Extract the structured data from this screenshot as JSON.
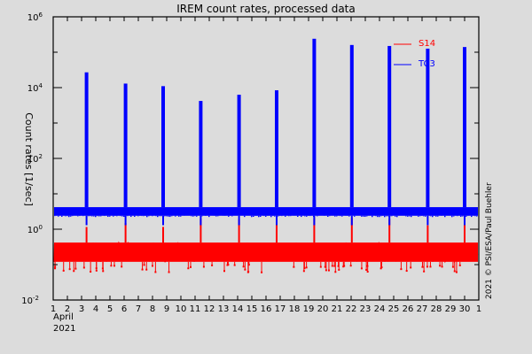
{
  "chart_data": {
    "type": "line",
    "title": "IREM count rates, processed data",
    "xlabel": "",
    "ylabel": "Count rates [1/sec]",
    "x_unit_label": [
      "April",
      "2021"
    ],
    "xlim": [
      1,
      31
    ],
    "ylim": [
      0.01,
      1000000
    ],
    "yscale": "log",
    "x_tick_labels": [
      "1",
      "2",
      "3",
      "4",
      "5",
      "6",
      "7",
      "8",
      "9",
      "10",
      "11",
      "12",
      "13",
      "14",
      "15",
      "16",
      "17",
      "18",
      "19",
      "20",
      "21",
      "22",
      "23",
      "24",
      "25",
      "26",
      "27",
      "28",
      "29",
      "30",
      "1"
    ],
    "y_tick_labels": [
      {
        "base": "10",
        "exp": "6"
      },
      {
        "base": "10",
        "exp": "4"
      },
      {
        "base": "10",
        "exp": "2"
      },
      {
        "base": "10",
        "exp": "0"
      },
      {
        "base": "10",
        "exp": "-2"
      }
    ],
    "grid": false,
    "legend_position": "upper right",
    "series": [
      {
        "name": "S14",
        "color": "#ff0000",
        "baseline_range": [
          0.06,
          0.5
        ],
        "baseline_typical": 0.2,
        "note": "noisy background band with small spikes near perigee passes"
      },
      {
        "name": "TC3",
        "color": "#0000ff",
        "baseline_typical": 3,
        "peaks": [
          {
            "day": 3.35,
            "value": 27000
          },
          {
            "day": 6.1,
            "value": 13000
          },
          {
            "day": 8.75,
            "value": 11000
          },
          {
            "day": 11.4,
            "value": 4200
          },
          {
            "day": 14.1,
            "value": 6300
          },
          {
            "day": 16.75,
            "value": 8400
          },
          {
            "day": 19.4,
            "value": 240000
          },
          {
            "day": 22.05,
            "value": 160000
          },
          {
            "day": 24.7,
            "value": 150000
          },
          {
            "day": 27.4,
            "value": 126000
          },
          {
            "day": 30.0,
            "value": 140000
          }
        ]
      }
    ],
    "credit": "2021 © PSI/ESA/Paul Buehler"
  }
}
